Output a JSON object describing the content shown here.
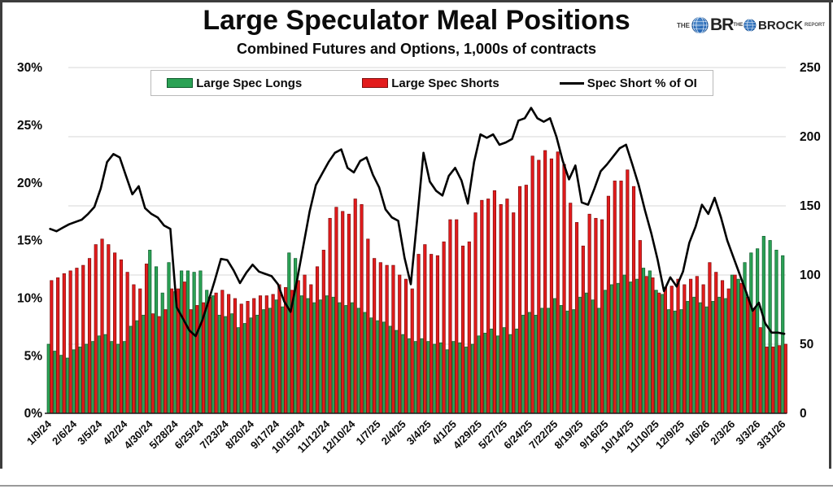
{
  "header": {
    "title": "Large Speculator Meal Positions",
    "subtitle": "Combined Futures and Options, 1,000s of contracts"
  },
  "logo": {
    "the": "THE",
    "br": "BR",
    "the2": "THE",
    "brock": "BROCK",
    "report": "REPORT"
  },
  "legend": {
    "items": [
      {
        "label": "Large Spec Longs",
        "color": "#2ba255",
        "swatch": "box"
      },
      {
        "label": "Large Spec Shorts",
        "color": "#e31b1c",
        "swatch": "box"
      },
      {
        "label": "Spec Short % of OI",
        "color": "#000000",
        "swatch": "line"
      }
    ]
  },
  "colors": {
    "long_fill": "#2ba255",
    "long_edge": "#0d5c2c",
    "short_fill": "#e31b1c",
    "short_edge": "#7e0d0d",
    "line": "#000000",
    "grid": "#d7d7d7",
    "axis": "#1a1a1a",
    "logo_globe": "#2b6cb8"
  },
  "chart_data": {
    "type": "bar",
    "subtype": "combo-bar-line",
    "title": "Large Speculator Meal Positions",
    "subtitle": "Combined Futures and Options, 1,000s of contracts",
    "grid": true,
    "legend_position": "top",
    "x_tick_labels": [
      "1/9/24",
      "2/6/24",
      "3/5/24",
      "4/2/24",
      "4/30/24",
      "5/28/24",
      "6/25/24",
      "7/23/24",
      "8/20/24",
      "9/17/24",
      "10/15/24",
      "11/12/24",
      "12/10/24",
      "1/7/25",
      "2/4/25",
      "3/4/25",
      "4/1/25",
      "4/29/25",
      "5/27/25",
      "6/24/25",
      "7/22/25",
      "8/19/25",
      "9/16/25",
      "10/14/25",
      "11/10/25",
      "12/9/25",
      "1/6/26",
      "2/3/26",
      "3/3/26",
      "3/31/26"
    ],
    "weeks_per_tick": 4,
    "n_points": 117,
    "left_axis": {
      "min": 0,
      "max": 30,
      "tick_values": [
        30,
        25,
        20,
        15,
        10,
        5,
        0
      ],
      "tick_labels": [
        "30%",
        "25%",
        "20%",
        "15%",
        "10%",
        "5%",
        "0%"
      ],
      "measures": "Spec Short % of OI"
    },
    "right_axis": {
      "min": 0,
      "max": 250,
      "tick_values": [
        250,
        200,
        150,
        100,
        50,
        0
      ],
      "tick_labels": [
        "250",
        "200",
        "150",
        "100",
        "50",
        "0"
      ],
      "measures": "1,000s of contracts"
    },
    "series": [
      {
        "name": "Large Spec Longs",
        "type": "bar",
        "axis": "right",
        "color": "#2ba255",
        "values": [
          50,
          45,
          42,
          40,
          46,
          48,
          50,
          52,
          56,
          57,
          52,
          50,
          52,
          63,
          67,
          71,
          118,
          106,
          87,
          109,
          88,
          103,
          103,
          102,
          103,
          89,
          85,
          71,
          70,
          72,
          62,
          65,
          69,
          71,
          75,
          76,
          82,
          77,
          116,
          112,
          85,
          83,
          80,
          82,
          85,
          84,
          80,
          78,
          80,
          76,
          73,
          69,
          67,
          66,
          63,
          60,
          57,
          54,
          52,
          54,
          52,
          50,
          51,
          46,
          52,
          51,
          48,
          50,
          56,
          58,
          61,
          56,
          62,
          57,
          61,
          71,
          73,
          71,
          76,
          76,
          83,
          78,
          74,
          75,
          84,
          87,
          82,
          76,
          89,
          93,
          94,
          100,
          95,
          97,
          105,
          103,
          89,
          86,
          75,
          74,
          75,
          81,
          84,
          80,
          77,
          81,
          84,
          83,
          100,
          97,
          109,
          116,
          119,
          128,
          125,
          118,
          114
        ]
      },
      {
        "name": "Large Spec Shorts",
        "type": "bar",
        "axis": "right",
        "color": "#e31b1c",
        "values": [
          96,
          98,
          101,
          103,
          105,
          107,
          112,
          122,
          126,
          122,
          116,
          111,
          102,
          93,
          90,
          108,
          72,
          70,
          75,
          90,
          90,
          95,
          75,
          78,
          80,
          84,
          87,
          89,
          86,
          83,
          79,
          81,
          83,
          85,
          85,
          86,
          93,
          91,
          89,
          96,
          100,
          93,
          106,
          118,
          141,
          149,
          146,
          144,
          155,
          151,
          126,
          112,
          109,
          107,
          107,
          100,
          97,
          90,
          115,
          122,
          115,
          114,
          124,
          140,
          140,
          121,
          124,
          145,
          154,
          155,
          161,
          151,
          155,
          145,
          164,
          165,
          186,
          183,
          190,
          184,
          189,
          180,
          152,
          138,
          121,
          144,
          141,
          140,
          157,
          168,
          168,
          176,
          164,
          125,
          99,
          98,
          87,
          91,
          92,
          97,
          93,
          97,
          99,
          93,
          109,
          102,
          96,
          90,
          100,
          94,
          84,
          76,
          62,
          48,
          48,
          49,
          50
        ]
      },
      {
        "name": "Spec Short % of OI",
        "type": "line",
        "axis": "left",
        "color": "#000000",
        "values": [
          16.0,
          15.8,
          16.1,
          16.4,
          16.6,
          16.8,
          17.3,
          17.9,
          19.5,
          21.8,
          22.5,
          22.2,
          20.6,
          19.0,
          19.7,
          17.8,
          17.3,
          17.0,
          16.3,
          16.0,
          9.2,
          8.2,
          7.2,
          6.7,
          8.0,
          9.7,
          11.5,
          13.4,
          13.3,
          12.4,
          11.3,
          12.2,
          12.9,
          12.3,
          12.1,
          11.9,
          11.2,
          9.7,
          8.8,
          11.5,
          14.5,
          17.5,
          19.8,
          20.8,
          21.8,
          22.6,
          22.9,
          21.3,
          20.9,
          21.9,
          22.2,
          20.7,
          19.6,
          17.7,
          17.0,
          16.7,
          13.5,
          11.2,
          16.8,
          22.6,
          20.1,
          19.3,
          18.9,
          20.6,
          21.3,
          20.2,
          18.2,
          21.8,
          24.2,
          23.9,
          24.2,
          23.3,
          23.5,
          23.8,
          25.4,
          25.6,
          26.5,
          25.6,
          25.3,
          25.6,
          24.0,
          21.9,
          20.3,
          21.5,
          18.3,
          18.1,
          19.5,
          21.0,
          21.6,
          22.3,
          23.0,
          23.3,
          21.6,
          19.8,
          17.6,
          15.6,
          13.3,
          10.6,
          11.8,
          11.0,
          12.3,
          14.8,
          16.2,
          18.1,
          17.3,
          18.7,
          17.0,
          15.0,
          13.5,
          12.0,
          10.5,
          8.9,
          9.6,
          7.8,
          7.0,
          7.0,
          6.9
        ]
      }
    ]
  }
}
